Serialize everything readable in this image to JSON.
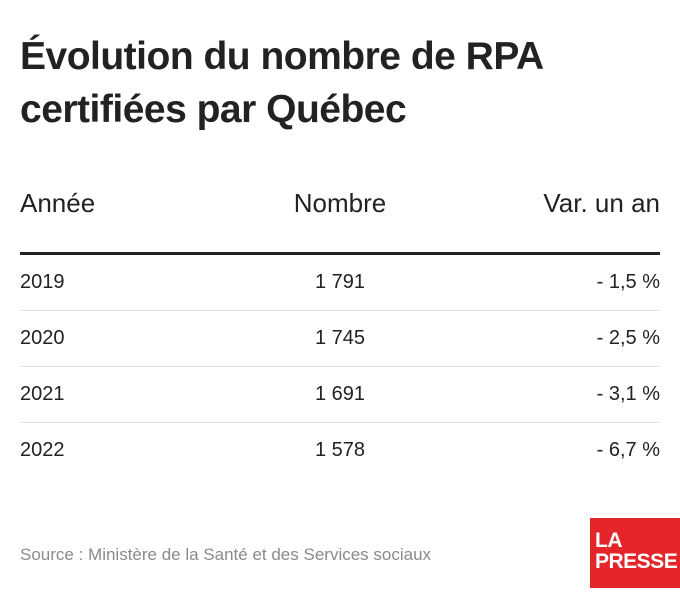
{
  "title_line1": "Évolution du nombre de RPA",
  "title_line2": "certifiées par Québec",
  "chart_data": {
    "type": "table",
    "columns": [
      "Année",
      "Nombre",
      "Var. un an"
    ],
    "rows": [
      [
        "2019",
        "1 791",
        "- 1,5 %"
      ],
      [
        "2020",
        "1 745",
        "- 2,5 %"
      ],
      [
        "2021",
        "1 691",
        "- 3,1 %"
      ],
      [
        "2022",
        "1 578",
        "- 6,7 %"
      ]
    ]
  },
  "source": "Source : Ministère de la Santé et des Services sociaux",
  "logo": {
    "line1": "LA",
    "line2": "PRESSE",
    "color": "#e4262b"
  }
}
